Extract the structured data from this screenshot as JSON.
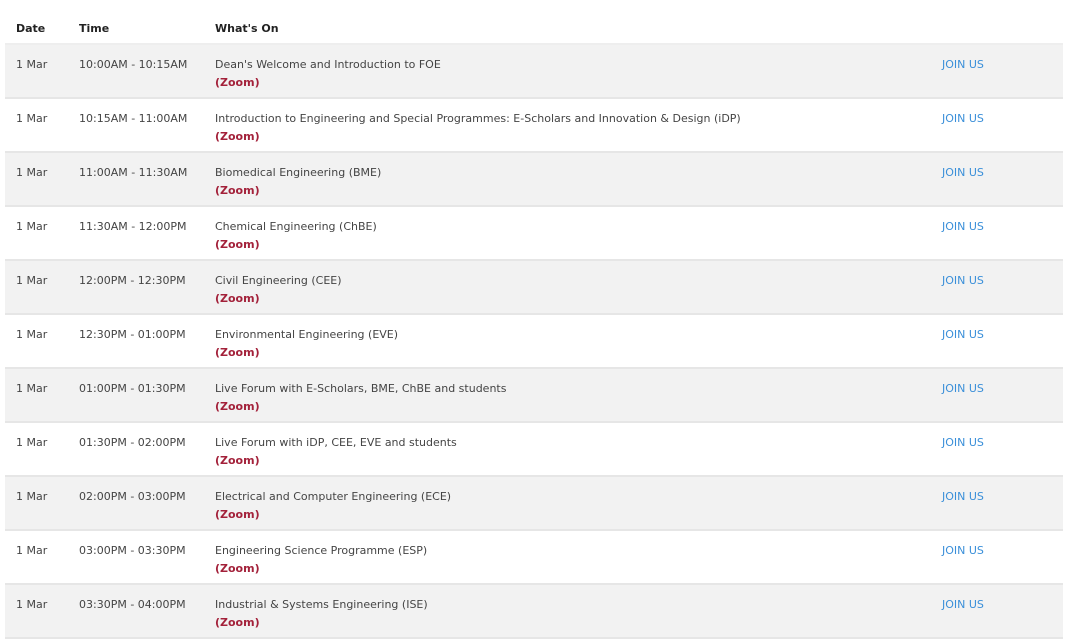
{
  "headers": {
    "date": "Date",
    "time": "Time",
    "whats_on": "What's On"
  },
  "colors": {
    "zoom": "#a3213a",
    "link": "#3a8fd9",
    "alt_row": "#f2f2f2"
  },
  "rows": [
    {
      "date": "1 Mar",
      "time": "10:00AM - 10:15AM",
      "title": "Dean's Welcome and Introduction to FOE",
      "platform": "(Zoom)",
      "action": "JOIN US"
    },
    {
      "date": "1 Mar",
      "time": "10:15AM - 11:00AM",
      "title": "Introduction to Engineering and Special Programmes: E-Scholars and Innovation & Design (iDP)",
      "platform": "(Zoom)",
      "action": "JOIN US"
    },
    {
      "date": "1 Mar",
      "time": "11:00AM - 11:30AM",
      "title": "Biomedical Engineering (BME)",
      "platform": "(Zoom)",
      "action": "JOIN US"
    },
    {
      "date": "1 Mar",
      "time": "11:30AM - 12:00PM",
      "title": "Chemical Engineering (ChBE)",
      "platform": "(Zoom)",
      "action": "JOIN US"
    },
    {
      "date": "1 Mar",
      "time": "12:00PM - 12:30PM",
      "title": "Civil Engineering (CEE)",
      "platform": "(Zoom)",
      "action": "JOIN US"
    },
    {
      "date": "1 Mar",
      "time": "12:30PM - 01:00PM",
      "title": "Environmental Engineering (EVE)",
      "platform": "(Zoom)",
      "action": "JOIN US"
    },
    {
      "date": "1 Mar",
      "time": "01:00PM - 01:30PM",
      "title": "Live Forum with E-Scholars, BME, ChBE and students",
      "platform": "(Zoom)",
      "action": "JOIN US"
    },
    {
      "date": "1 Mar",
      "time": "01:30PM - 02:00PM",
      "title": "Live Forum with iDP, CEE, EVE and students",
      "platform": "(Zoom)",
      "action": "JOIN US"
    },
    {
      "date": "1 Mar",
      "time": "02:00PM - 03:00PM",
      "title": "Electrical and Computer Engineering (ECE)",
      "platform": "(Zoom)",
      "action": "JOIN US"
    },
    {
      "date": "1 Mar",
      "time": "03:00PM - 03:30PM",
      "title": "Engineering Science Programme (ESP)",
      "platform": "(Zoom)",
      "action": "JOIN US"
    },
    {
      "date": "1 Mar",
      "time": "03:30PM - 04:00PM",
      "title": "Industrial & Systems Engineering (ISE)",
      "platform": "(Zoom)",
      "action": "JOIN US"
    }
  ]
}
